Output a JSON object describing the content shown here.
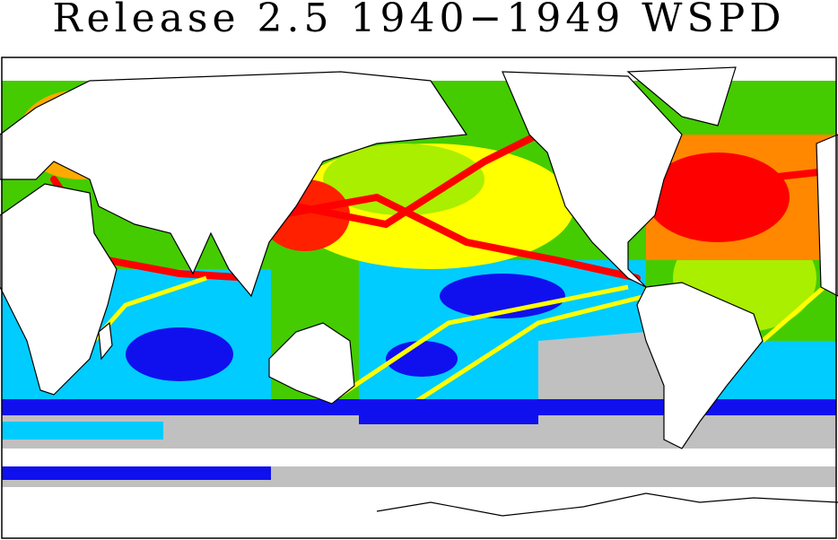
{
  "title": "Release 2.5 1940−1949 WSPD"
}
